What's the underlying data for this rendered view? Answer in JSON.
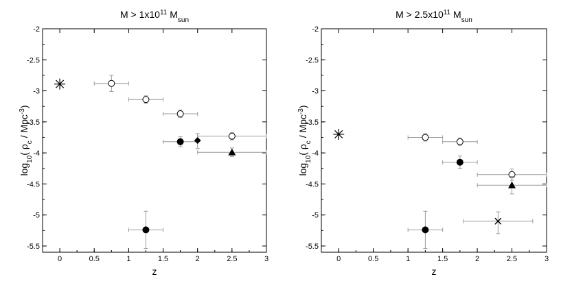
{
  "chart_data": [
    {
      "type": "scatter",
      "title": {
        "main": "M > 1x10",
        "sup": "11",
        "tail": " M",
        "sub": "sun"
      },
      "xlabel": "z",
      "ylabel": {
        "pre": "log",
        "sub": "10",
        "mid": "( ρ",
        "sub2": "c",
        "post": " /  Mpc",
        "sup": "-3",
        "end": ")"
      },
      "xlim": [
        -0.25,
        3
      ],
      "ylim": [
        -5.6,
        -2
      ],
      "xticks": [
        0,
        0.5,
        1,
        1.5,
        2,
        2.5,
        3
      ],
      "xtick_labels": [
        "0",
        "0.5",
        "1",
        "1.5",
        "2",
        "2.5",
        "3"
      ],
      "yticks": [
        -2,
        -2.5,
        -3,
        -3.5,
        -4,
        -4.5,
        -5,
        -5.5
      ],
      "ytick_labels": [
        "-2",
        "-2.5",
        "-3",
        "-3.5",
        "-4",
        "-4.5",
        "-5",
        "-5.5"
      ],
      "points": [
        {
          "marker": "asterisk",
          "x": 0,
          "y": -2.89
        },
        {
          "marker": "open-circle",
          "x": 0.75,
          "y": -2.88,
          "xerr": 0.25,
          "yerr": [
            0.13,
            0.13
          ]
        },
        {
          "marker": "open-circle",
          "x": 1.25,
          "y": -3.14,
          "xerr": 0.25,
          "yerr": [
            0.06,
            0.06
          ]
        },
        {
          "marker": "open-circle",
          "x": 1.75,
          "y": -3.37,
          "xerr": 0.25,
          "yerr": [
            0.06,
            0.06
          ]
        },
        {
          "marker": "open-circle",
          "x": 2.5,
          "y": -3.73,
          "xerr": 0.5,
          "yerr": [
            0.06,
            0.06
          ]
        },
        {
          "marker": "filled-circle",
          "x": 1.75,
          "y": -3.82,
          "xerr": 0.25,
          "yerr": [
            0.08,
            0.08
          ]
        },
        {
          "marker": "filled-diamond",
          "x": 2.0,
          "y": -3.8,
          "yerr": [
            0.13,
            0.11
          ]
        },
        {
          "marker": "filled-triangle",
          "x": 2.5,
          "y": -3.99,
          "xerr": 0.5,
          "yerr": [
            0.07,
            0.07
          ]
        },
        {
          "marker": "filled-circle",
          "x": 1.25,
          "y": -5.24,
          "xerr": 0.25,
          "yerr": [
            0.3,
            0.3
          ]
        }
      ]
    },
    {
      "type": "scatter",
      "title": {
        "main": "M > 2.5x10",
        "sup": "11",
        "tail": " M",
        "sub": "sun"
      },
      "xlabel": "z",
      "ylabel": {
        "pre": "log",
        "sub": "10",
        "mid": "( ρ",
        "sub2": "c",
        "post": " /  Mpc",
        "sup": "-3",
        "end": ")"
      },
      "xlim": [
        -0.25,
        3
      ],
      "ylim": [
        -5.6,
        -2
      ],
      "xticks": [
        0,
        0.5,
        1,
        1.5,
        2,
        2.5,
        3
      ],
      "xtick_labels": [
        "0",
        "0.5",
        "1",
        "1.5",
        "2",
        "2.5",
        "3"
      ],
      "yticks": [
        -2,
        -2.5,
        -3,
        -3.5,
        -4,
        -4.5,
        -5,
        -5.5
      ],
      "ytick_labels": [
        "-2",
        "-2.5",
        "-3",
        "-3.5",
        "-4",
        "-4.5",
        "-5",
        "-5.5"
      ],
      "points": [
        {
          "marker": "asterisk",
          "x": 0,
          "y": -3.7
        },
        {
          "marker": "open-circle",
          "x": 1.25,
          "y": -3.75,
          "xerr": 0.25,
          "yerr": [
            0.06,
            0.06
          ]
        },
        {
          "marker": "open-circle",
          "x": 1.75,
          "y": -3.82,
          "xerr": 0.25,
          "yerr": [
            0.06,
            0.06
          ]
        },
        {
          "marker": "filled-circle",
          "x": 1.75,
          "y": -4.15,
          "xerr": 0.25,
          "yerr": [
            0.1,
            0.1
          ]
        },
        {
          "marker": "open-circle",
          "x": 2.5,
          "y": -4.35,
          "xerr": 0.5,
          "yerr": [
            0.09,
            0.09
          ]
        },
        {
          "marker": "filled-triangle",
          "x": 2.5,
          "y": -4.52,
          "xerr": 0.5,
          "yerr": [
            0.14,
            0.14
          ]
        },
        {
          "marker": "filled-circle",
          "x": 1.25,
          "y": -5.24,
          "xerr": 0.25,
          "yerr": [
            0.3,
            0.3
          ]
        },
        {
          "marker": "cross",
          "x": 2.3,
          "y": -5.1,
          "xerr": 0.5,
          "yerr": [
            0.2,
            0.15
          ]
        }
      ]
    }
  ]
}
